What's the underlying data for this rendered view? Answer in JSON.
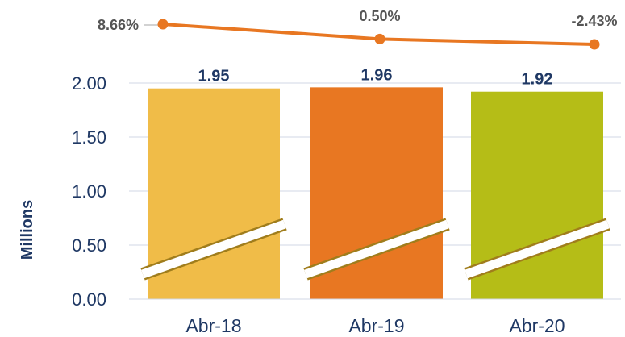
{
  "chart_data": {
    "type": "bar",
    "categories": [
      "Abr-18",
      "Abr-19",
      "Abr-20"
    ],
    "ylabel": "Millions",
    "ylim": [
      0,
      2.0
    ],
    "yticks": [
      "0.00",
      "0.50",
      "1.00",
      "1.50",
      "2.00"
    ],
    "grid": true,
    "axis_break": true,
    "series": [
      {
        "type": "bar",
        "values": [
          1.95,
          1.96,
          1.92
        ],
        "labels": [
          "1.95",
          "1.96",
          "1.92"
        ],
        "colors": [
          "#f0bc48",
          "#e87722",
          "#b5bd17"
        ]
      },
      {
        "type": "line",
        "values": [
          8.66,
          0.5,
          -2.43
        ],
        "labels": [
          "8.66%",
          "0.50%",
          "-2.43%"
        ],
        "unit": "%",
        "color": "#e87722"
      }
    ]
  }
}
